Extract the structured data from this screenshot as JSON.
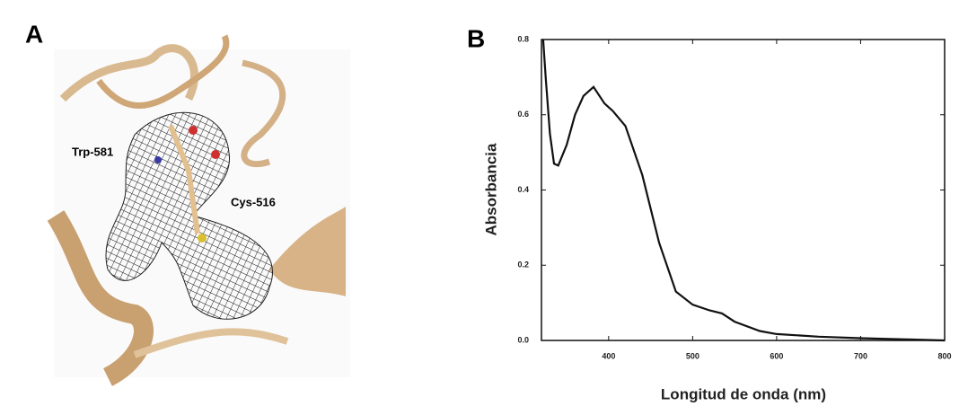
{
  "panel_a": {
    "label": "A",
    "annotations": [
      "Trp-581",
      "Cys-516"
    ]
  },
  "chart_data": {
    "type": "line",
    "panel_label": "B",
    "x_label": "Longitud de onda (nm)",
    "y_label": "Absorbancia",
    "xlim": [
      320,
      800
    ],
    "xticks": [
      400,
      500,
      600,
      700,
      800
    ],
    "ylim": [
      0,
      0.8
    ],
    "yticks": [
      {
        "value": 0,
        "label": "0.0"
      },
      0.2,
      0.4,
      0.6,
      0.8
    ],
    "series": [
      {
        "color": "#111111",
        "x": [
          322,
          325,
          330,
          335,
          340,
          350,
          360,
          370,
          382,
          395,
          405,
          420,
          440,
          460,
          480,
          500,
          520,
          535,
          550,
          580,
          600,
          650,
          700,
          750,
          800
        ],
        "values": [
          0.8,
          0.7,
          0.55,
          0.47,
          0.465,
          0.52,
          0.6,
          0.65,
          0.674,
          0.63,
          0.61,
          0.57,
          0.44,
          0.26,
          0.13,
          0.095,
          0.08,
          0.072,
          0.05,
          0.025,
          0.017,
          0.01,
          0.006,
          0.003,
          0.0
        ]
      }
    ]
  }
}
